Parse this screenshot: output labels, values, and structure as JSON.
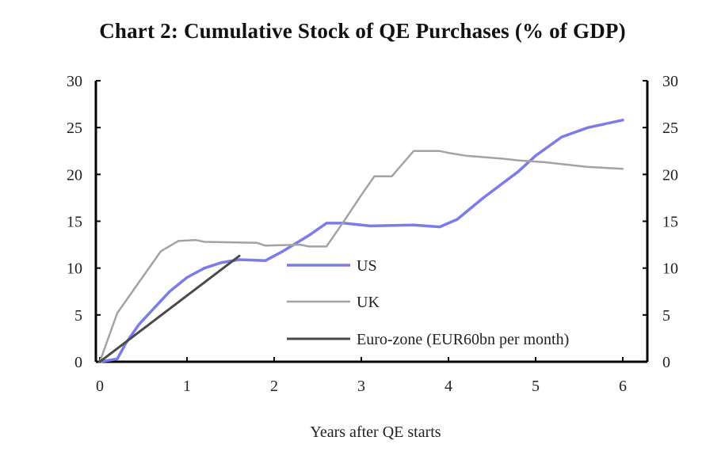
{
  "chart_data": {
    "type": "line",
    "title": "Chart 2: Cumulative Stock of QE Purchases (% of GDP)",
    "xlabel": "Years after QE starts",
    "ylabel": "",
    "xlim": [
      0,
      6
    ],
    "ylim": [
      0,
      30
    ],
    "x_ticks": [
      "0",
      "1",
      "2",
      "3",
      "4",
      "5",
      "6"
    ],
    "y_ticks_left": [
      "30",
      "25",
      "20",
      "15",
      "10",
      "5",
      "0"
    ],
    "y_ticks_right": [
      "30",
      "25",
      "20",
      "15",
      "10",
      "5",
      "0"
    ],
    "grid": false,
    "legend_position": "center",
    "series": [
      {
        "name": "US",
        "color": "#7b7bea",
        "points": [
          [
            0,
            0
          ],
          [
            0.2,
            0.3
          ],
          [
            0.3,
            2
          ],
          [
            0.45,
            4
          ],
          [
            0.6,
            5.5
          ],
          [
            0.8,
            7.5
          ],
          [
            1.0,
            9
          ],
          [
            1.2,
            10
          ],
          [
            1.4,
            10.6
          ],
          [
            1.6,
            10.9
          ],
          [
            1.9,
            10.8
          ],
          [
            2.1,
            11.8
          ],
          [
            2.4,
            13.5
          ],
          [
            2.6,
            14.8
          ],
          [
            2.8,
            14.8
          ],
          [
            3.1,
            14.5
          ],
          [
            3.6,
            14.6
          ],
          [
            3.9,
            14.4
          ],
          [
            4.1,
            15.2
          ],
          [
            4.4,
            17.5
          ],
          [
            4.8,
            20.3
          ],
          [
            5.0,
            22
          ],
          [
            5.3,
            24
          ],
          [
            5.6,
            25
          ],
          [
            6.0,
            25.8
          ]
        ]
      },
      {
        "name": "UK",
        "color": "#a3a3a3",
        "points": [
          [
            0,
            0
          ],
          [
            0.2,
            5.2
          ],
          [
            0.45,
            8.5
          ],
          [
            0.7,
            11.8
          ],
          [
            0.9,
            12.9
          ],
          [
            1.1,
            13
          ],
          [
            1.2,
            12.8
          ],
          [
            1.8,
            12.7
          ],
          [
            1.9,
            12.4
          ],
          [
            2.3,
            12.5
          ],
          [
            2.4,
            12.3
          ],
          [
            2.6,
            12.3
          ],
          [
            2.8,
            15
          ],
          [
            3.0,
            17.8
          ],
          [
            3.15,
            19.8
          ],
          [
            3.35,
            19.8
          ],
          [
            3.6,
            22.5
          ],
          [
            3.9,
            22.5
          ],
          [
            4.0,
            22.3
          ],
          [
            4.2,
            22
          ],
          [
            4.6,
            21.7
          ],
          [
            4.8,
            21.5
          ],
          [
            5.1,
            21.3
          ],
          [
            5.4,
            21
          ],
          [
            5.6,
            20.8
          ],
          [
            6.0,
            20.6
          ]
        ]
      },
      {
        "name": "Euro-zone (EUR60bn per month)",
        "color": "#4a4a4a",
        "points": [
          [
            0,
            0
          ],
          [
            1.6,
            11.3
          ]
        ]
      }
    ]
  }
}
